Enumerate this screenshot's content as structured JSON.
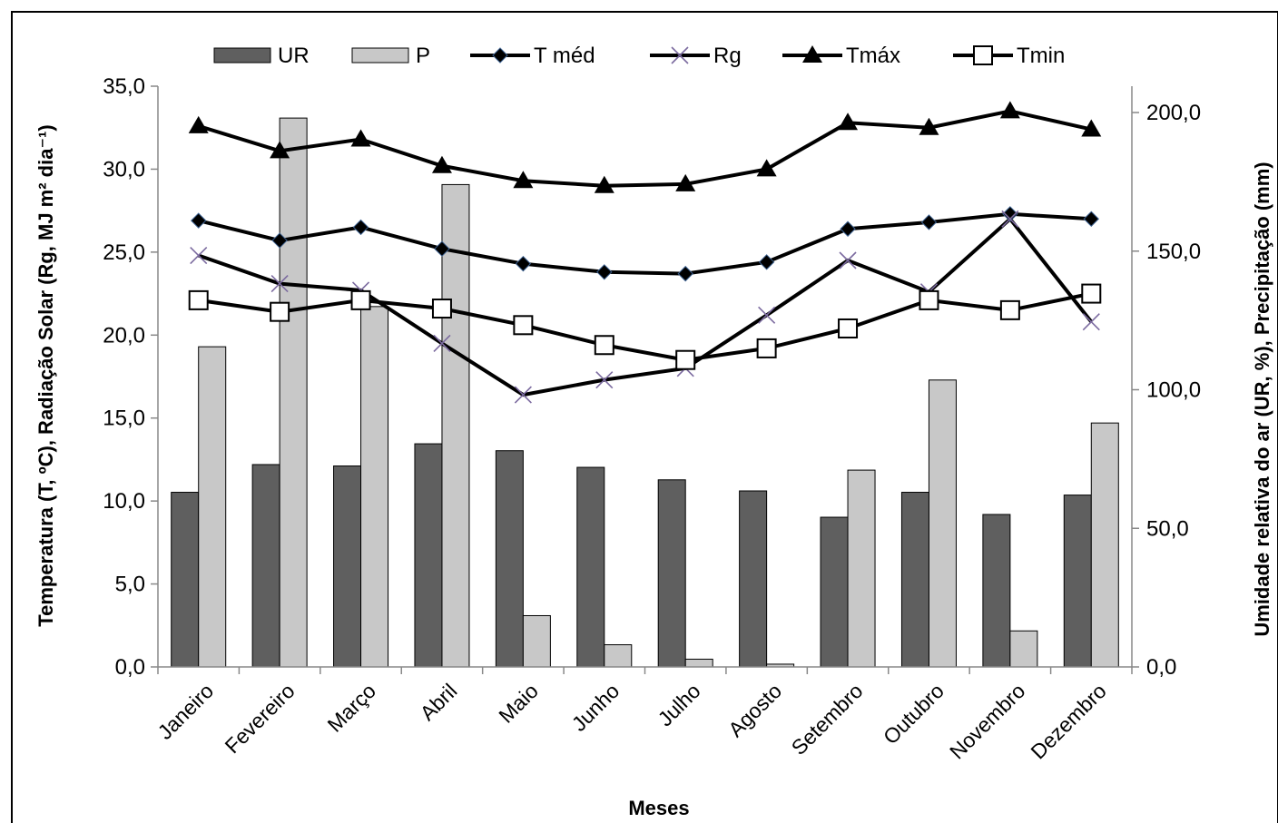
{
  "chart_data": {
    "type": "bar",
    "categories": [
      "Janeiro",
      "Fevereiro",
      "Março",
      "Abril",
      "Maio",
      "Junho",
      "Julho",
      "Agosto",
      "Setembro",
      "Outubro",
      "Novembro",
      "Dezembro"
    ],
    "xlabel": "Meses",
    "ylabel_left": "Temperatura (T, ºC), Radiação Solar (Rg, MJ m² dia⁻¹)",
    "ylabel_right": "Umidade relativa do ar (UR, %), Precipitação (mm)",
    "ylim_left": [
      0,
      35
    ],
    "ylim_right": [
      0,
      200
    ],
    "left_ticks": [
      "0,0",
      "5,0",
      "10,0",
      "15,0",
      "20,0",
      "25,0",
      "30,0",
      "35,0"
    ],
    "right_ticks": [
      "0,0",
      "50,0",
      "100,0",
      "150,0",
      "200,0"
    ],
    "legend_position": "top",
    "grid": false,
    "series": [
      {
        "name": "UR",
        "type": "bar",
        "axis": "right",
        "color": "#5f5f5f",
        "values": [
          63.0,
          73.0,
          72.5,
          80.5,
          78.0,
          72.0,
          67.5,
          63.5,
          54.0,
          63.0,
          55.0,
          62.0
        ]
      },
      {
        "name": "P",
        "type": "bar",
        "axis": "right",
        "color": "#c8c8c8",
        "values": [
          115.5,
          198.0,
          130.0,
          174.0,
          18.5,
          8.0,
          2.8,
          1.0,
          71.0,
          103.5,
          13.0,
          88.0
        ]
      },
      {
        "name": "T méd",
        "type": "line",
        "marker": "diamond",
        "axis": "left",
        "values": [
          26.9,
          25.7,
          26.5,
          25.2,
          24.3,
          23.8,
          23.7,
          24.4,
          26.4,
          26.8,
          27.3,
          27.0
        ]
      },
      {
        "name": "Rg",
        "type": "line",
        "marker": "x",
        "axis": "left",
        "values": [
          24.8,
          23.1,
          22.7,
          19.5,
          16.4,
          17.3,
          18.0,
          21.2,
          24.5,
          22.6,
          27.0,
          20.8
        ]
      },
      {
        "name": "Tmáx",
        "type": "line",
        "marker": "triangle",
        "axis": "left",
        "values": [
          32.6,
          31.1,
          31.8,
          30.2,
          29.3,
          29.0,
          29.1,
          30.0,
          32.8,
          32.5,
          33.5,
          32.4
        ]
      },
      {
        "name": "Tmin",
        "type": "line",
        "marker": "square",
        "axis": "left",
        "values": [
          22.1,
          21.4,
          22.1,
          21.6,
          20.6,
          19.4,
          18.5,
          19.2,
          20.4,
          22.1,
          21.5,
          22.5
        ]
      }
    ]
  }
}
